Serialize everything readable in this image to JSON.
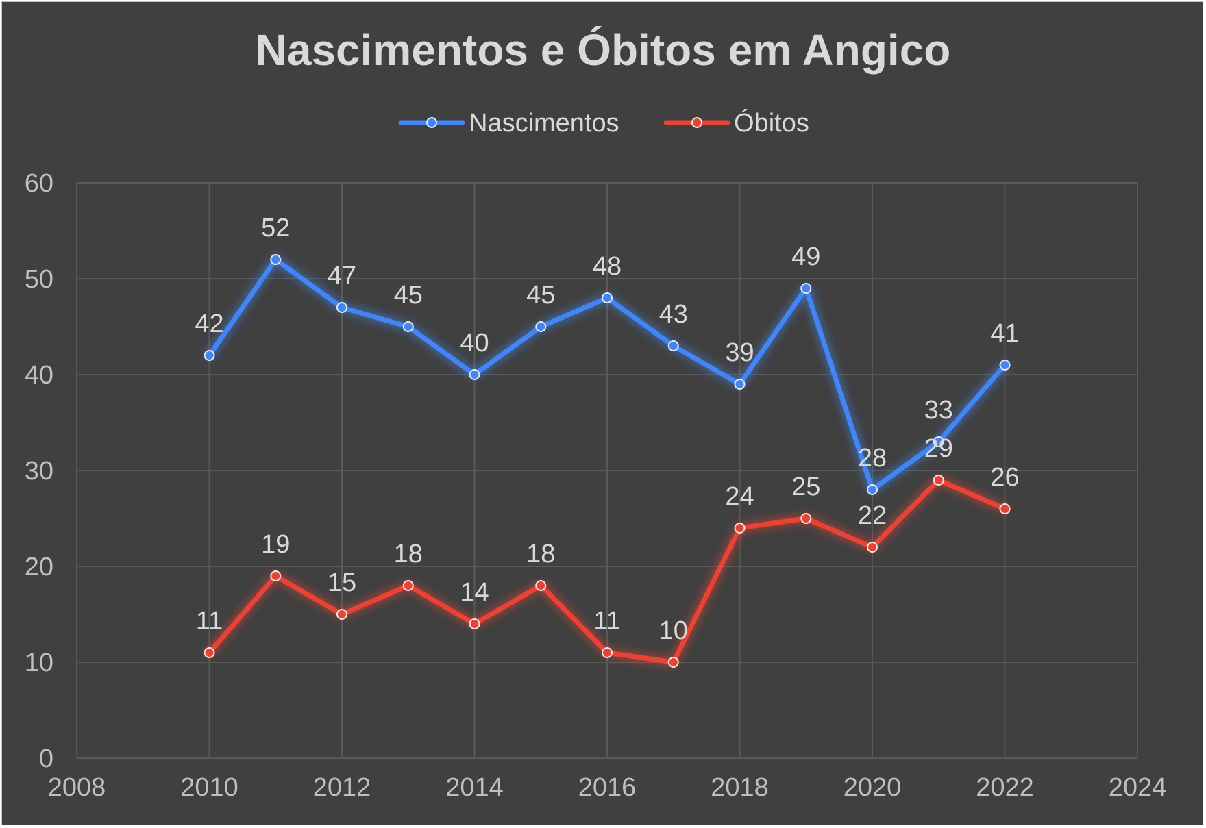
{
  "chart_data": {
    "type": "line",
    "title": "Nascimentos e Óbitos em Angico",
    "xlabel": "",
    "ylabel": "",
    "xlim": [
      2008,
      2024
    ],
    "ylim": [
      0,
      60
    ],
    "x_ticks": [
      "2008",
      "2010",
      "2012",
      "2014",
      "2016",
      "2018",
      "2020",
      "2022",
      "2024"
    ],
    "y_ticks": [
      "0",
      "10",
      "20",
      "30",
      "40",
      "50",
      "60"
    ],
    "grid": true,
    "legend_position": "top",
    "x": [
      2010,
      2011,
      2012,
      2013,
      2014,
      2015,
      2016,
      2017,
      2018,
      2019,
      2020,
      2021,
      2022
    ],
    "series": [
      {
        "name": "Nascimentos",
        "color": "#4285f4",
        "values": [
          42,
          52,
          47,
          45,
          40,
          45,
          48,
          43,
          39,
          49,
          28,
          33,
          41
        ]
      },
      {
        "name": "Óbitos",
        "color": "#ea4335",
        "values": [
          11,
          19,
          15,
          18,
          14,
          18,
          11,
          10,
          24,
          25,
          22,
          29,
          26
        ]
      }
    ]
  }
}
